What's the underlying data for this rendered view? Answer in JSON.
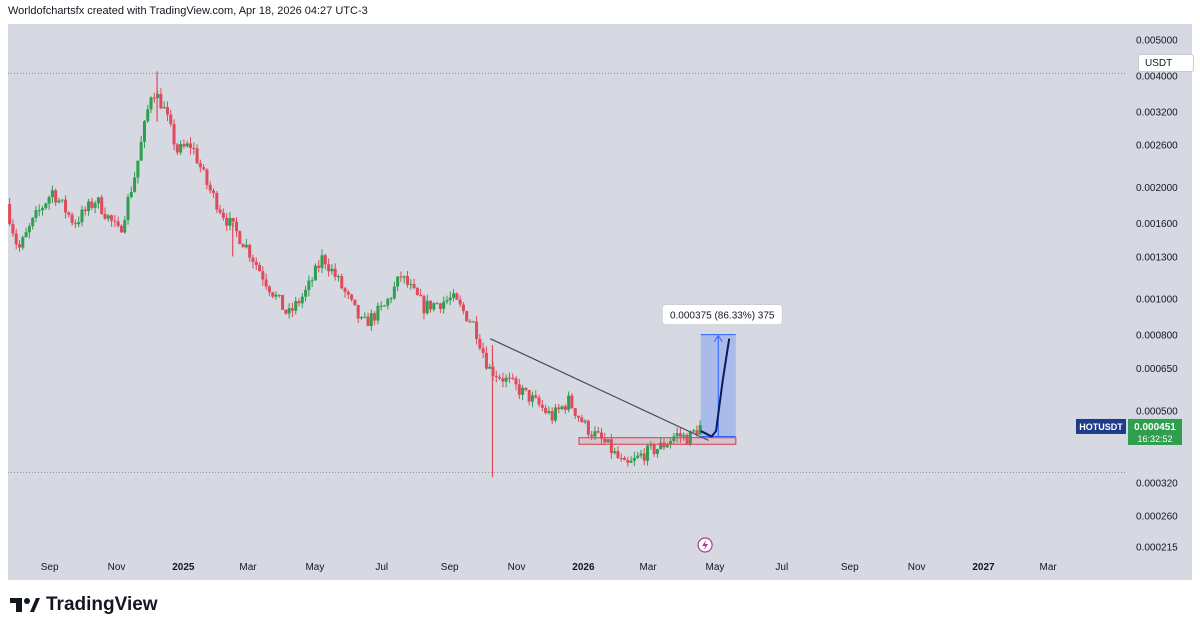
{
  "header": {
    "attribution": "Worldofchartsfx created with TradingView.com, Apr 18, 2026 04:27 UTC-3"
  },
  "brand": {
    "name": "TradingView"
  },
  "currency": "USDT",
  "ticker": {
    "symbol": "HOTUSDT",
    "price": "0.000451",
    "countdown": "16:32:52"
  },
  "measure_label": "0.000375 (86.33%) 375",
  "colors": {
    "background": "#d6d8e2",
    "up": "#2e9e4f",
    "down": "#e04a5a",
    "trendline": "#4a4e5a",
    "measure_fill": "#9bb0e6",
    "measure_stroke": "#2962ff",
    "projection": "#0b1a5e",
    "support_zone": "#d9525e",
    "ticker_bg": "#2e9e4f"
  },
  "chart_data": {
    "type": "candlestick",
    "y_scale": "log",
    "ylim": [
      0.000205,
      0.0055
    ],
    "y_ticks": [
      "0.005000",
      "0.004000",
      "0.003200",
      "0.002600",
      "0.002000",
      "0.001600",
      "0.001300",
      "0.001000",
      "0.000800",
      "0.000650",
      "0.000500",
      "0.000320",
      "0.000260",
      "0.000215"
    ],
    "x_ticks": [
      "Sep",
      "Nov",
      "2025",
      "Mar",
      "May",
      "Jul",
      "Sep",
      "Nov",
      "2026",
      "Mar",
      "May",
      "Jul",
      "Sep",
      "Nov",
      "2027",
      "Mar"
    ],
    "bold_x_ticks": [
      "2025",
      "2026",
      "2027"
    ],
    "price_path": [
      [
        "2024-07-25",
        0.0018
      ],
      [
        "2024-08-05",
        0.00135
      ],
      [
        "2024-08-20",
        0.00165
      ],
      [
        "2024-09-05",
        0.00195
      ],
      [
        "2024-09-25",
        0.0016
      ],
      [
        "2024-10-15",
        0.00185
      ],
      [
        "2024-11-05",
        0.0015
      ],
      [
        "2024-11-20",
        0.0022
      ],
      [
        "2024-12-05",
        0.0037
      ],
      [
        "2024-12-15",
        0.0033
      ],
      [
        "2024-12-28",
        0.0025
      ],
      [
        "2025-01-10",
        0.0026
      ],
      [
        "2025-01-25",
        0.002
      ],
      [
        "2025-02-10",
        0.00165
      ],
      [
        "2025-02-28",
        0.0014
      ],
      [
        "2025-03-20",
        0.0011
      ],
      [
        "2025-04-08",
        0.0009
      ],
      [
        "2025-04-25",
        0.00105
      ],
      [
        "2025-05-10",
        0.0013
      ],
      [
        "2025-05-25",
        0.0011
      ],
      [
        "2025-06-15",
        0.00085
      ],
      [
        "2025-07-05",
        0.00095
      ],
      [
        "2025-07-20",
        0.00115
      ],
      [
        "2025-08-10",
        0.00095
      ],
      [
        "2025-09-05",
        0.001
      ],
      [
        "2025-09-25",
        0.00085
      ],
      [
        "2025-10-08",
        0.00065
      ],
      [
        "2025-10-25",
        0.0006
      ],
      [
        "2025-11-15",
        0.00054
      ],
      [
        "2025-12-05",
        0.00048
      ],
      [
        "2025-12-20",
        0.00053
      ],
      [
        "2026-01-05",
        0.00045
      ],
      [
        "2026-01-25",
        0.0004
      ],
      [
        "2026-02-10",
        0.00035
      ],
      [
        "2026-02-25",
        0.00038
      ],
      [
        "2026-03-15",
        0.0004
      ],
      [
        "2026-03-28",
        0.00043
      ],
      [
        "2026-04-08",
        0.00042
      ],
      [
        "2026-04-18",
        0.000451
      ]
    ],
    "wicks": [
      {
        "date": "2024-12-08",
        "high": 0.0041,
        "low": 0.003
      },
      {
        "date": "2025-02-15",
        "high": 0.0016,
        "low": 0.0013
      },
      {
        "date": "2025-10-10",
        "high": 0.00075,
        "low": 0.00033
      }
    ],
    "trendline": [
      [
        "2025-10-08",
        0.00078
      ],
      [
        "2026-04-25",
        0.000415
      ]
    ],
    "support_zone": {
      "start": "2025-12-28",
      "end": "2026-05-20",
      "low": 0.000405,
      "high": 0.000422
    },
    "measure_box": {
      "start": "2026-04-18",
      "end": "2026-05-20",
      "low": 0.000425,
      "high": 0.0008
    },
    "projection": [
      [
        "2026-04-18",
        0.00044
      ],
      [
        "2026-04-28",
        0.000425
      ],
      [
        "2026-05-02",
        0.00044
      ],
      [
        "2026-05-08",
        0.0006
      ],
      [
        "2026-05-14",
        0.00078
      ]
    ],
    "dotted_levels": [
      0.00405,
      0.00034
    ]
  }
}
